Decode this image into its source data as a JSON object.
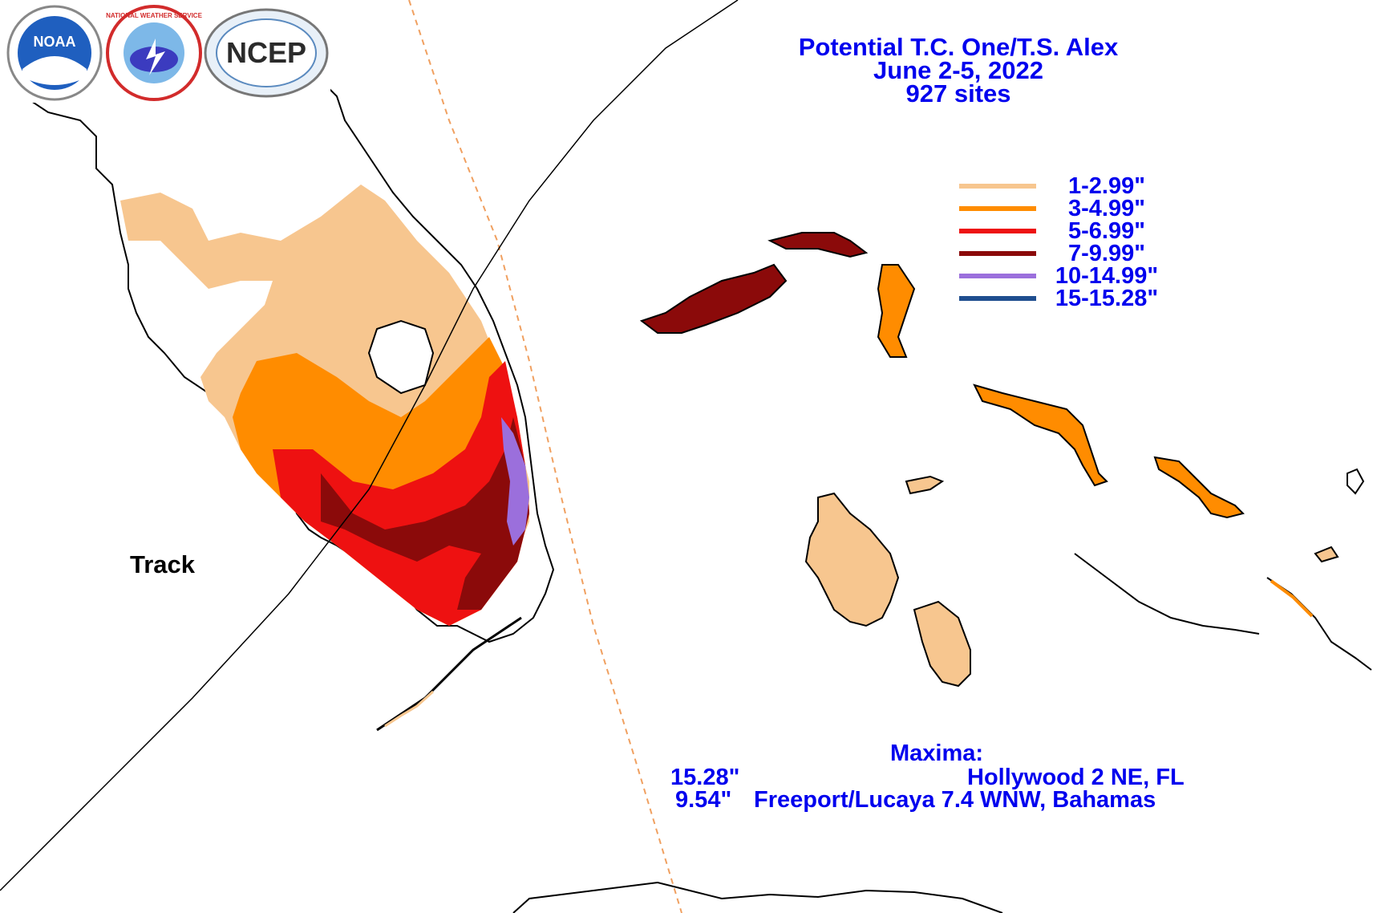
{
  "title": {
    "line1": "Potential T.C. One/T.S. Alex",
    "line2": "June 2-5, 2022",
    "line3": "927 sites"
  },
  "logos": [
    {
      "name": "noaa-logo",
      "text": "NOAA",
      "fg": "#ffffff",
      "bg": "#1f5fbf"
    },
    {
      "name": "nws-logo",
      "text": "NATIONAL WEATHER SERVICE",
      "fg": "#d22b2b"
    },
    {
      "name": "ncep-logo",
      "text": "NCEP",
      "fg": "#2b2b2b"
    }
  ],
  "legend": [
    {
      "label": "1-2.99\"",
      "color": "#f7c68f"
    },
    {
      "label": "3-4.99\"",
      "color": "#ff8c00"
    },
    {
      "label": "5-6.99\"",
      "color": "#ee1111"
    },
    {
      "label": "7-9.99\"",
      "color": "#8b0a0a"
    },
    {
      "label": "10-14.99\"",
      "color": "#9b6fdc"
    },
    {
      "label": "15-15.28\"",
      "color": "#1f4e8f"
    }
  ],
  "track_label": "Track",
  "maxima": {
    "heading": "Maxima:",
    "rows": [
      {
        "value": "15.28\"",
        "location": "Hollywood 2 NE, FL"
      },
      {
        "value": "9.54\"",
        "location": "Freeport/Lucaya 7.4 WNW, Bahamas"
      }
    ]
  },
  "colors": {
    "land_outline": "#000000",
    "track_line": "#000000",
    "boundary_dashed": "#f0a060",
    "text_blue": "#0000ee"
  }
}
